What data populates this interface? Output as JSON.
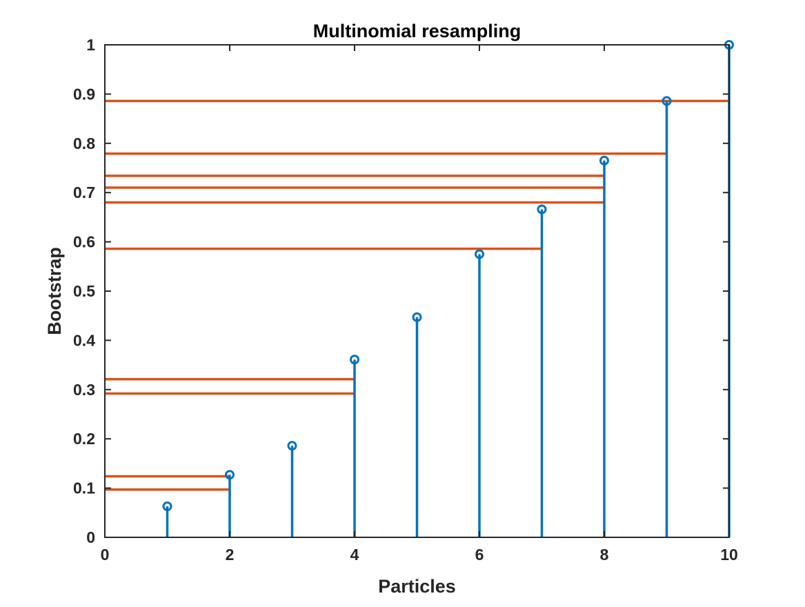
{
  "chart_data": {
    "type": "stem",
    "title": "Multinomial resampling",
    "xlabel": "Particles",
    "ylabel": "Bootstrap",
    "xlim": [
      0,
      10
    ],
    "ylim": [
      0,
      1
    ],
    "xticks": [
      0,
      2,
      4,
      6,
      8,
      10
    ],
    "xtick_labels": [
      "0",
      "2",
      "4",
      "6",
      "8",
      "10"
    ],
    "yticks": [
      0,
      0.1,
      0.2,
      0.3,
      0.4,
      0.5,
      0.6,
      0.7,
      0.8,
      0.9,
      1
    ],
    "ytick_labels": [
      "0",
      "0.1",
      "0.2",
      "0.3",
      "0.4",
      "0.5",
      "0.6",
      "0.7",
      "0.8",
      "0.9",
      "1"
    ],
    "grid": false,
    "series": [
      {
        "kind": "stem",
        "color": "#0072BD",
        "x": [
          1,
          2,
          3,
          4,
          5,
          6,
          7,
          8,
          9,
          10
        ],
        "values": [
          0.063,
          0.127,
          0.186,
          0.361,
          0.447,
          0.575,
          0.666,
          0.765,
          0.886,
          1.0
        ]
      },
      {
        "kind": "horizontal-lines",
        "color": "#D95319",
        "lines": [
          {
            "y": 0.097,
            "x_end": 2
          },
          {
            "y": 0.124,
            "x_end": 2
          },
          {
            "y": 0.292,
            "x_end": 4
          },
          {
            "y": 0.321,
            "x_end": 4
          },
          {
            "y": 0.586,
            "x_end": 7
          },
          {
            "y": 0.68,
            "x_end": 8
          },
          {
            "y": 0.71,
            "x_end": 8
          },
          {
            "y": 0.734,
            "x_end": 8
          },
          {
            "y": 0.779,
            "x_end": 9
          },
          {
            "y": 0.886,
            "x_end": 10
          }
        ]
      }
    ]
  }
}
